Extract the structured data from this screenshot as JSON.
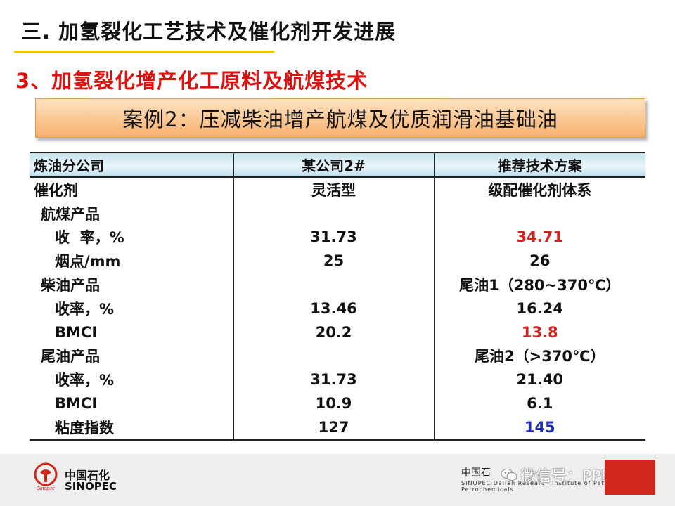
{
  "title": "三. 加氢裂化工艺技术及催化剂开发进展",
  "subtitle": "3、加氢裂化增产化工原料及航煤技术",
  "case_title": "案例2：压减柴油增产航煤及优质润滑油基础油",
  "table": {
    "headers": [
      "炼油分公司",
      "某公司2#",
      "推荐技术方案"
    ],
    "rows": [
      {
        "label": "催化剂",
        "v1": "灵活型",
        "v2": "级配催化剂体系"
      },
      {
        "label": "航煤产品",
        "v1": "",
        "v2": ""
      },
      {
        "label": "收  率，%",
        "v1": "31.73",
        "v2": "34.71"
      },
      {
        "label": "烟点/mm",
        "v1": "25",
        "v2": "26"
      },
      {
        "label": "柴油产品",
        "v1": "",
        "v2": "尾油1（280~370℃）"
      },
      {
        "label": "收率，%",
        "v1": "13.46",
        "v2": "16.24"
      },
      {
        "label": "BMCI",
        "v1": "20.2",
        "v2": "13.8"
      },
      {
        "label": "尾油产品",
        "v1": "",
        "v2": "尾油2（>370℃）"
      },
      {
        "label": "收率，%",
        "v1": "31.73",
        "v2": "21.40"
      },
      {
        "label": "BMCI",
        "v1": "10.9",
        "v2": "6.1"
      },
      {
        "label": "粘度指数",
        "v1": "127",
        "v2": "145"
      }
    ]
  },
  "colors": {
    "highlight_red": "#d8201c",
    "highlight_blue": "#1f2fb0",
    "title_red": "#e01010",
    "rule_yellow": "#f2c200"
  },
  "footer": {
    "logo_cn": "中国石化",
    "logo_en": "SINOPEC",
    "institute_cn": "中国石",
    "institute_en": "SINOPEC Dalian Research Institute of Petroleum and Petrochemicals",
    "watermark": "微信号：PPEFDY",
    "logo_icon": "sinopec-logo-icon",
    "wechat_icon": "wechat-icon"
  }
}
